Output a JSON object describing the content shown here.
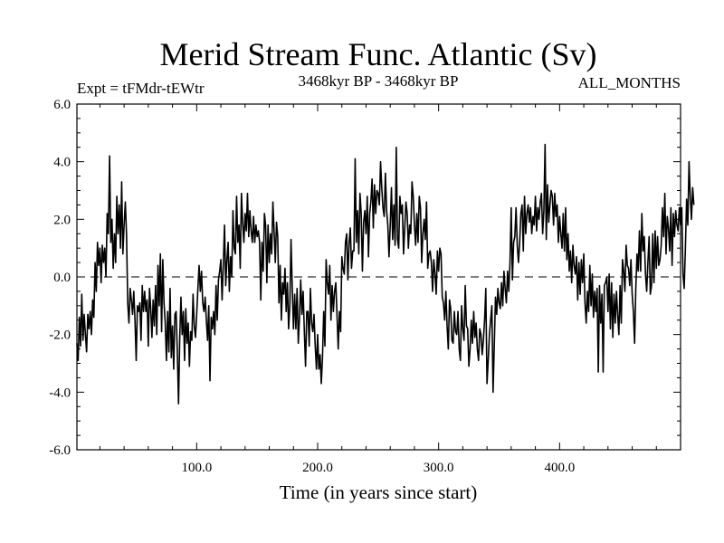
{
  "chart_data": {
    "type": "line",
    "title": "Merid Stream Func. Atlantic (Sv)",
    "subtitle_left": "Expt = tFMdr-tEWtr",
    "subtitle_center": "3468kyr BP - 3468kyr BP",
    "subtitle_right": "ALL_MONTHS",
    "xlabel": "Time (in years since start)",
    "ylabel": "",
    "xlim": [
      1,
      500
    ],
    "ylim": [
      -6,
      6
    ],
    "x_ticks": [
      {
        "value": 100,
        "label": "100.0"
      },
      {
        "value": 200,
        "label": "200.0"
      },
      {
        "value": 300,
        "label": "300.0"
      },
      {
        "value": 400,
        "label": "400.0"
      }
    ],
    "y_ticks": [
      {
        "value": 6,
        "label": "6.0"
      },
      {
        "value": 4,
        "label": "4.0"
      },
      {
        "value": 2,
        "label": "2.0"
      },
      {
        "value": 0,
        "label": "0.0"
      },
      {
        "value": -2,
        "label": "-2.0"
      },
      {
        "value": -4,
        "label": "-4.0"
      },
      {
        "value": -6,
        "label": "-6.0"
      }
    ],
    "reference_line": {
      "y": 0,
      "style": "dashed"
    },
    "series": [
      {
        "name": "Merid Stream Func. Atlantic",
        "x_start": 1,
        "x_step": 1,
        "color": "#000000",
        "values": [
          -2.3,
          -2.9,
          -1.4,
          -2.4,
          -0.6,
          -2.2,
          -1.3,
          -2.0,
          -2.6,
          -1.3,
          -1.8,
          -1.2,
          -2.0,
          -0.8,
          -1.4,
          0.5,
          -0.5,
          1.2,
          0.4,
          1.0,
          -0.2,
          1.1,
          0.5,
          1.0,
          0.0,
          2.2,
          1.5,
          4.2,
          1.2,
          2.0,
          0.3,
          1.5,
          0.5,
          2.8,
          1.5,
          2.5,
          1.0,
          3.3,
          0.8,
          1.8,
          2.6,
          1.5,
          -0.9,
          -1.6,
          -0.4,
          -0.8,
          -1.3,
          -0.5,
          -1.5,
          -2.9,
          -1.0,
          -1.2,
          -0.9,
          -2.2,
          -0.3,
          -1.2,
          -0.5,
          -1.2,
          -0.8,
          -2.4,
          -0.4,
          -1.1,
          -2.1,
          -0.8,
          -1.7,
          -0.3,
          -2.0,
          0.4,
          -1.0,
          0.8,
          -1.9,
          0.6,
          -0.9,
          -1.6,
          -2.9,
          -1.2,
          -2.6,
          -0.4,
          -2.8,
          -1.7,
          -3.2,
          -1.3,
          -1.2,
          -2.6,
          -4.4,
          -2.1,
          -0.7,
          -2.0,
          -1.2,
          -2.9,
          -1.1,
          -2.3,
          -1.6,
          -3.1,
          -1.9,
          -2.2,
          -0.6,
          -1.7,
          -2.1,
          -1.3,
          -0.4,
          0.4,
          -0.5,
          0.2,
          -0.9,
          -1.2,
          -0.7,
          -1.5,
          -2.2,
          -1.0,
          -3.6,
          -1.4,
          -1.8,
          -1.2,
          -2.0,
          -0.3,
          -1.5,
          -0.1,
          0.2,
          0.6,
          -0.8,
          0.4,
          1.8,
          -0.3,
          0.6,
          1.2,
          -0.5,
          0.7,
          0.0,
          2.3,
          1.0,
          0.8,
          2.8,
          1.2,
          1.8,
          0.3,
          2.9,
          1.9,
          1.2,
          2.2,
          1.6,
          2.9,
          1.4,
          2.3,
          1.6,
          1.2,
          2.1,
          1.2,
          1.8,
          1.4,
          1.6,
          1.2,
          -0.8,
          1.2,
          0.2,
          2.2,
          1.8,
          -0.2,
          1.8,
          0.5,
          1.5,
          0.8,
          2.6,
          1.6,
          0.5,
          1.9,
          1.4,
          -0.9,
          0.4,
          -1.5,
          -0.2,
          -0.6,
          0.3,
          -1.2,
          -0.2,
          -1.8,
          -1.0,
          1.3,
          -0.4,
          -1.8,
          -0.6,
          -1.8,
          -0.4,
          -2.3,
          -1.4,
          -0.1,
          -1.3,
          -0.5,
          -1.9,
          -3.1,
          -1.2,
          -1.2,
          -2.4,
          -0.4,
          -1.6,
          -1.9,
          -1.3,
          -2.4,
          -3.2,
          -2.0,
          -3.2,
          -2.7,
          -3.7,
          -2.8,
          -1.2,
          -2.4,
          0.6,
          -0.2,
          -0.6,
          0.4,
          -1.5,
          -0.3,
          -1.2,
          -0.5,
          -0.2,
          -1.3,
          -2.5,
          -1.2,
          -1.9,
          0.7,
          0.3,
          0.1,
          1.2,
          1.5,
          -0.1,
          1.2,
          1.7,
          0.3,
          0.9,
          0.9,
          4.1,
          1.2,
          2.3,
          0.8,
          2.9,
          2.2,
          0.2,
          1.9,
          2.3,
          1.5,
          2.8,
          0.7,
          2.2,
          2.6,
          3.4,
          1.7,
          3.2,
          2.2,
          3.0,
          2.9,
          2.5,
          4.0,
          3.1,
          2.4,
          2.1,
          3.6,
          2.3,
          1.8,
          0.7,
          1.8,
          3.1,
          1.3,
          2.5,
          1.1,
          4.5,
          1.3,
          1.0,
          2.8,
          2.2,
          2.5,
          0.8,
          1.7,
          2.6,
          2.2,
          1.0,
          1.8,
          1.5,
          3.3,
          2.8,
          1.8,
          1.1,
          2.2,
          1.2,
          2.8,
          2.4,
          0.5,
          1.5,
          2.0,
          1.3,
          2.6,
          0.3,
          0.8,
          0.9,
          0.5,
          -0.5,
          0.6,
          0.1,
          -0.6,
          0.9,
          0.2,
          1.0,
          0.8,
          -0.7,
          -0.9,
          -1.5,
          -0.5,
          -1.7,
          -2.5,
          -0.8,
          -1.1,
          -2.2,
          -2.3,
          -1.2,
          -1.9,
          -2.0,
          -1.2,
          -2.5,
          -2.9,
          -1.0,
          -1.8,
          -2.2,
          -0.3,
          -1.7,
          -1.8,
          -3.1,
          -2.5,
          -1.5,
          -2.3,
          -1.2,
          -2.1,
          -1.6,
          -2.5,
          -2.9,
          -1.8,
          -2.0,
          -2.7,
          -2.2,
          -1.5,
          -0.4,
          -3.7,
          -2.9,
          -2.0,
          -1.5,
          -1.0,
          -4.0,
          -2.4,
          -0.7,
          -1.3,
          -0.4,
          -0.9,
          -1.1,
          -0.2,
          -1.0,
          0.2,
          -0.4,
          -0.9,
          0.2,
          -0.5,
          0.5,
          2.4,
          -0.1,
          1.2,
          1.4,
          2.4,
          1.1,
          0.5,
          1.2,
          2.2,
          2.5,
          0.9,
          2.8,
          1.5,
          2.2,
          2.5,
          1.9,
          2.4,
          1.5,
          2.1,
          1.8,
          2.8,
          1.6,
          2.4,
          2.0,
          2.6,
          2.9,
          1.5,
          2.3,
          4.6,
          1.3,
          3.2,
          1.9,
          2.5,
          3.0,
          2.8,
          1.8,
          2.9,
          2.1,
          2.5,
          1.2,
          2.1,
          1.5,
          1.0,
          2.2,
          0.9,
          2.4,
          0.6,
          1.5,
          0.2,
          0.9,
          -0.2,
          1.1,
          0.4,
          0.1,
          0.7,
          -0.8,
          0.5,
          -0.6,
          0.6,
          -0.2,
          0.8,
          -0.9,
          -1.6,
          -0.5,
          -1.2,
          0.4,
          -1.0,
          0.1,
          -1.4,
          -0.5,
          -1.2,
          -0.4,
          -3.3,
          -0.3,
          -1.6,
          -0.6,
          -3.3,
          -0.3,
          -0.2,
          0.0,
          -1.2,
          0.1,
          -1.8,
          -0.2,
          -2.1,
          -0.6,
          -1.6,
          -0.5,
          -1.3,
          -2.0,
          -0.3,
          -1.6,
          0.6,
          0.2,
          -0.5,
          1.1,
          0.4,
          0.3,
          -0.3,
          0.6,
          -0.6,
          -1.2,
          -2.3,
          -0.4,
          0.8,
          0.2,
          1.6,
          0.2,
          2.2,
          0.9,
          1.4,
          0.1,
          -0.5,
          0.5,
          1.4,
          -0.6,
          -0.3,
          1.5,
          -0.2,
          1.6,
          0.3,
          1.4,
          0.4,
          0.6,
          1.1,
          2.4,
          1.4,
          2.9,
          0.8,
          2.1,
          1.7,
          0.9,
          2.4,
          0.4,
          2.2,
          1.4,
          2.3,
          1.8,
          1.6,
          2.4,
          1.8,
          2.4,
          0.1,
          -0.4,
          1.0,
          2.7,
          1.8,
          4.0,
          2.8,
          2.0,
          3.1,
          2.5
        ]
      }
    ]
  }
}
